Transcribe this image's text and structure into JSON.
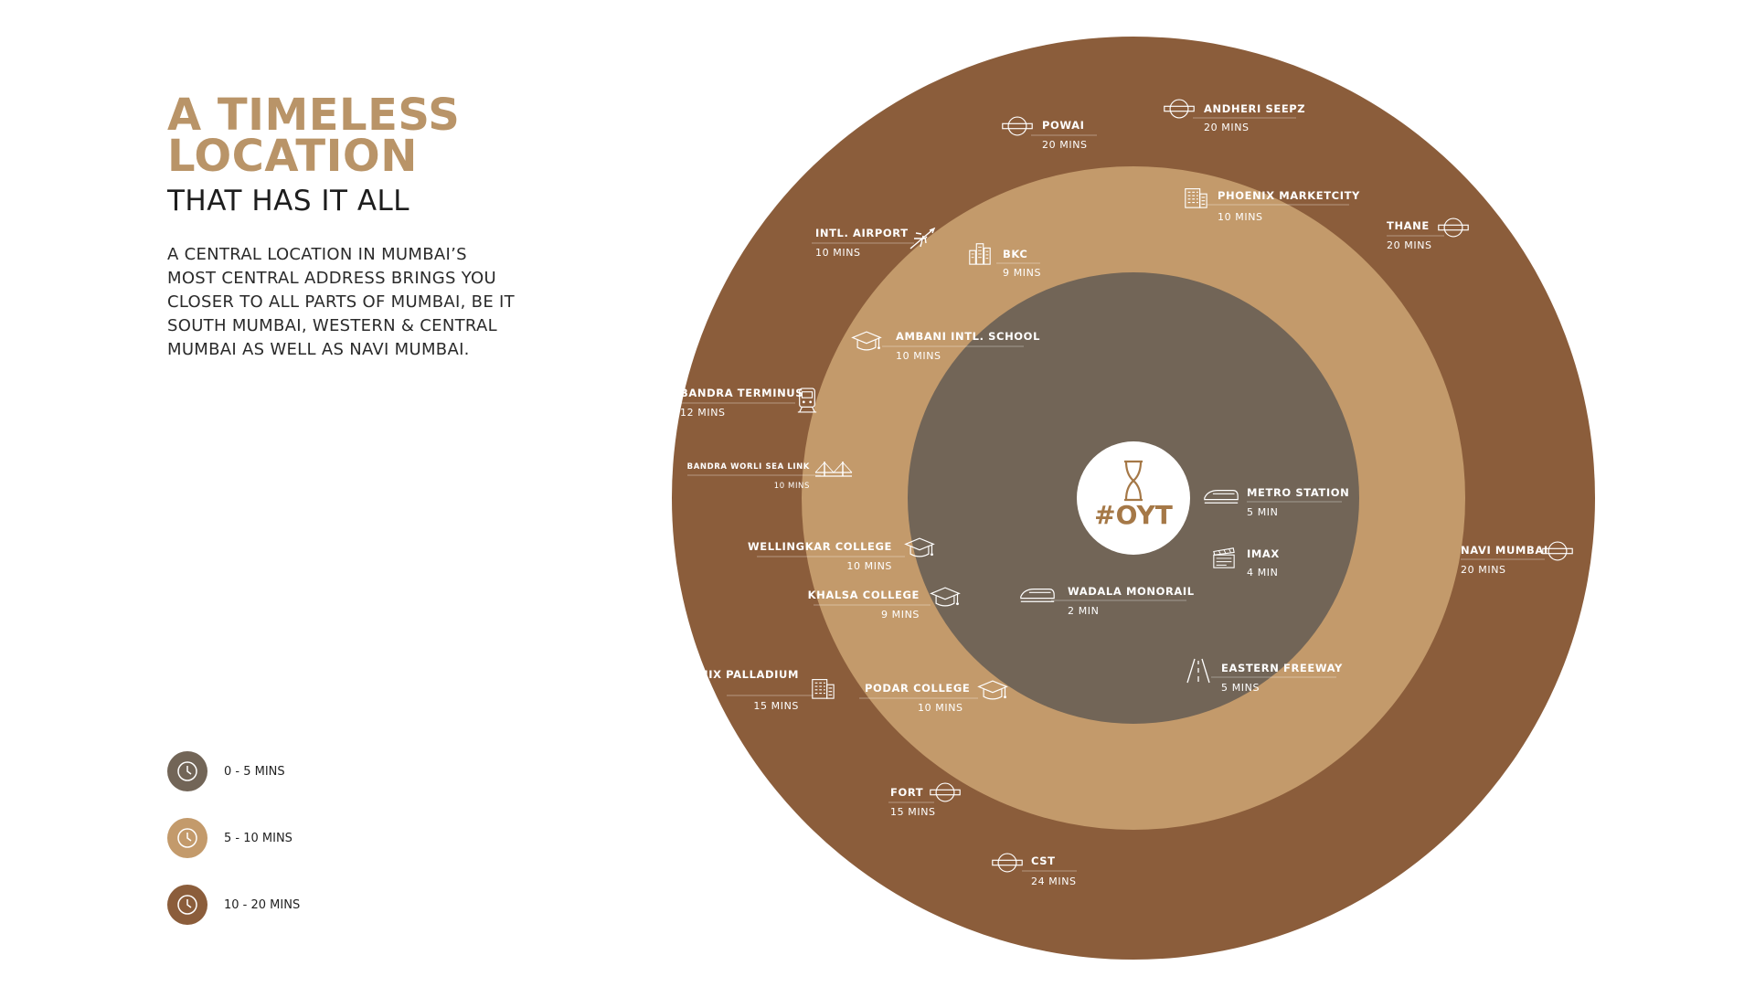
{
  "headline": {
    "line1": "A TIMELESS",
    "line2": "LOCATION"
  },
  "subheadline": "THAT HAS IT ALL",
  "description": [
    "A CENTRAL LOCATION IN MUMBAI’S",
    "MOST CENTRAL ADDRESS BRINGS YOU",
    "CLOSER TO ALL PARTS OF MUMBAI, BE IT",
    "SOUTH MUMBAI, WESTERN & CENTRAL",
    "MUMBAI AS WELL AS NAVI MUMBAI."
  ],
  "colors": {
    "inner_zone": "#726557",
    "middle_zone": "#c39a6b",
    "outer_zone": "#8b5d3b",
    "headline_gold": "#b99468",
    "logo_brown": "#a57847"
  },
  "legend": [
    {
      "label": "0 - 5 MINS",
      "color": "#726557"
    },
    {
      "label": "5 - 10 MINS",
      "color": "#c39a6b"
    },
    {
      "label": "10 - 20 MINS",
      "color": "#8b5d3b"
    }
  ],
  "center": {
    "logo_text": "#OYT",
    "icon": "hourglass-icon"
  },
  "locations": [
    {
      "id": "metro-station",
      "title": "METRO STATION",
      "time": "5 MIN",
      "icon": "metro-train-icon"
    },
    {
      "id": "imax",
      "title": "IMAX",
      "time": "4 MIN",
      "icon": "clapperboard-icon"
    },
    {
      "id": "wadala-monorail",
      "title": "WADALA MONORAIL",
      "time": "2 MIN",
      "icon": "monorail-icon"
    },
    {
      "id": "eastern-freeway",
      "title": "EASTERN FREEWAY",
      "time": "5 MINS",
      "icon": "road-icon"
    },
    {
      "id": "bkc",
      "title": "BKC",
      "time": "9 MINS",
      "icon": "city-buildings-icon"
    },
    {
      "id": "phoenix-marketcity",
      "title": "PHOENIX MARKETCITY",
      "time": "10 MINS",
      "icon": "mall-building-icon"
    },
    {
      "id": "ambani-intl-school",
      "title": "AMBANI INTL. SCHOOL",
      "time": "10 MINS",
      "icon": "graduation-cap-icon"
    },
    {
      "id": "wellingkar-college",
      "title": "WELLINGKAR COLLEGE",
      "time": "10 MINS",
      "icon": "graduation-cap-icon"
    },
    {
      "id": "khalsa-college",
      "title": "KHALSA COLLEGE",
      "time": "9 MINS",
      "icon": "graduation-cap-icon"
    },
    {
      "id": "podar-college",
      "title": "PODAR COLLEGE",
      "time": "10 MINS",
      "icon": "graduation-cap-icon"
    },
    {
      "id": "powai",
      "title": "POWAI",
      "time": "20 MINS",
      "icon": "roundel-icon"
    },
    {
      "id": "andheri-seepz",
      "title": "ANDHERI SEEPZ",
      "time": "20 MINS",
      "icon": "roundel-icon"
    },
    {
      "id": "intl-airport",
      "title": "INTL. AIRPORT",
      "time": "10 MINS",
      "icon": "airplane-icon"
    },
    {
      "id": "thane",
      "title": "THANE",
      "time": "20 MINS",
      "icon": "roundel-icon"
    },
    {
      "id": "bandra-terminus",
      "title": "BANDRA TERMINUS",
      "time": "12 MINS",
      "icon": "train-icon"
    },
    {
      "id": "bandra-worli-sea-link",
      "title": "BANDRA WORLI SEA LINK",
      "time": "10 MINS",
      "icon": "bridge-icon"
    },
    {
      "id": "navi-mumbai",
      "title": "NAVI MUMBAI",
      "time": "20 MINS",
      "icon": "roundel-icon"
    },
    {
      "id": "phoenix-palladium",
      "title": "PHOENIX PALLADIUM",
      "time": "15 MINS",
      "icon": "mall-building-icon"
    },
    {
      "id": "fort",
      "title": "FORT",
      "time": "15 MINS",
      "icon": "roundel-icon"
    },
    {
      "id": "cst",
      "title": "CST",
      "time": "24 MINS",
      "icon": "roundel-icon"
    }
  ]
}
